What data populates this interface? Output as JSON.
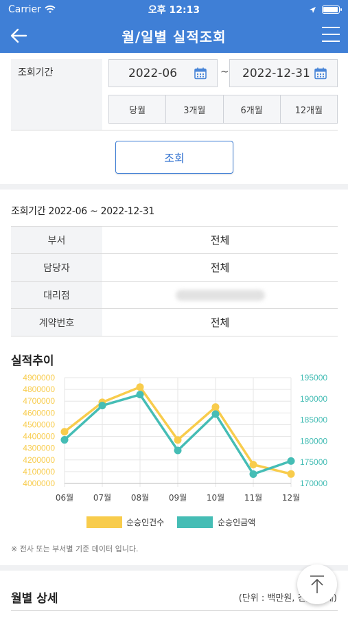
{
  "status": {
    "carrier": "Carrier",
    "time": "오후 12:13",
    "battery_level": 0.95
  },
  "nav": {
    "title": "월/일별 실적조회"
  },
  "filter": {
    "label": "조회기간",
    "start": "2022-06",
    "end": "2022-12-31",
    "separator": "~",
    "periods": [
      "당월",
      "3개월",
      "6개월",
      "12개월"
    ],
    "search_label": "조회"
  },
  "summary": {
    "title": "조회기간 2022-06 ~ 2022-12-31",
    "rows": [
      {
        "label": "부서",
        "value": "전체"
      },
      {
        "label": "담당자",
        "value": "전체"
      },
      {
        "label": "대리점",
        "value": ""
      },
      {
        "label": "계약번호",
        "value": "전체"
      }
    ]
  },
  "chart_section": {
    "title": "실적추이",
    "note": "※ 전사 또는 부서별 기준 데이터 입니다."
  },
  "chart_data": {
    "type": "line",
    "categories": [
      "06월",
      "07월",
      "08월",
      "09월",
      "10월",
      "11월",
      "12월"
    ],
    "series": [
      {
        "name": "순승인건수",
        "axis": "left",
        "color": "#f8cc4c",
        "values": [
          4440000,
          4690000,
          4820000,
          4370000,
          4650000,
          4160000,
          4080000
        ]
      },
      {
        "name": "순승인금액",
        "axis": "right",
        "color": "#45bdb5",
        "values": [
          180300,
          188400,
          191000,
          177800,
          186400,
          172200,
          175300
        ]
      }
    ],
    "y_left": {
      "min": 4000000,
      "max": 4900000,
      "step": 100000,
      "color": "#f8cc4c"
    },
    "y_right": {
      "min": 170000,
      "max": 195000,
      "step": 5000,
      "color": "#45bdb5"
    },
    "grid": true,
    "legend": "bottom"
  },
  "monthly": {
    "title": "월별 상세",
    "unit": "(단위 : 백만원, 건, 원, 대)"
  }
}
